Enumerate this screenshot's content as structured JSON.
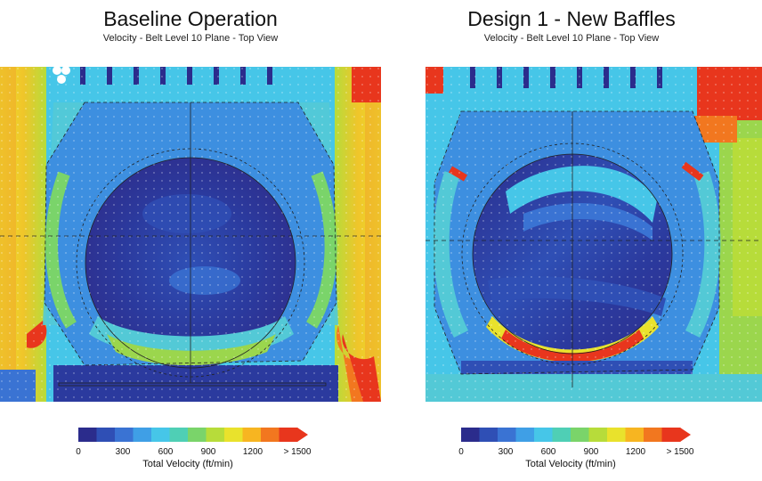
{
  "panels": [
    {
      "title": "Baseline Operation",
      "subtitle": "Velocity - Belt Level 10 Plane - Top View"
    },
    {
      "title": "Design 1 - New Baffles",
      "subtitle": "Velocity - Belt Level 10 Plane - Top View"
    }
  ],
  "legend": {
    "title": "Total Velocity (ft/min)",
    "ticks": [
      "0",
      "300",
      "600",
      "900",
      "1200",
      "> 1500"
    ],
    "colors": [
      "#2b2c8c",
      "#2f4fb5",
      "#3a73d3",
      "#3f9fe6",
      "#46c6e8",
      "#4fcfb5",
      "#7ad46a",
      "#b7dc3a",
      "#e9e22c",
      "#f7b521",
      "#f2771f",
      "#e8361d"
    ]
  },
  "colors": {
    "low": "#2e3a9a",
    "mid_low": "#3d8fe0",
    "mid": "#53c9d6",
    "mid_high": "#9bd64d",
    "high": "#f2e22e",
    "very_high": "#e8361d"
  }
}
